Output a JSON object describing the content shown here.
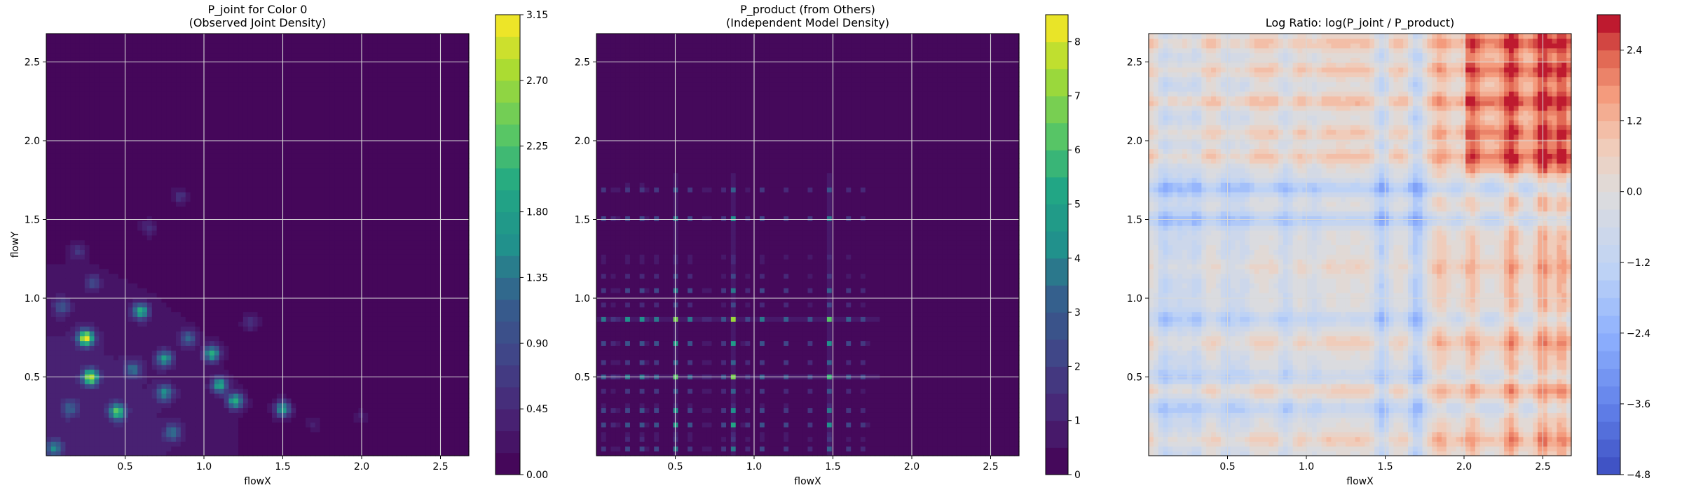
{
  "chart_data": [
    {
      "type": "heatmap",
      "title": "P_joint for Color 0\n(Observed Joint Density)",
      "xlabel": "flowX",
      "ylabel": "flowY",
      "xlim": [
        0,
        2.68
      ],
      "ylim": [
        0,
        2.68
      ],
      "xticks": [
        0.5,
        1.0,
        1.5,
        2.0,
        2.5
      ],
      "yticks": [
        0.5,
        1.0,
        1.5,
        2.0,
        2.5
      ],
      "grid": true,
      "colormap": "viridis",
      "colorbar": {
        "min": 0,
        "max": 3.15,
        "ticks": [
          0.0,
          0.45,
          0.9,
          1.35,
          1.8,
          2.25,
          2.7,
          3.15
        ],
        "tick_labels": [
          "0.00",
          "0.45",
          "0.90",
          "1.35",
          "1.80",
          "2.25",
          "2.70",
          "3.15"
        ],
        "levels": 21
      },
      "density_peaks": [
        {
          "x": 0.25,
          "y": 0.75,
          "value": 2.9
        },
        {
          "x": 0.28,
          "y": 0.5,
          "value": 2.6
        },
        {
          "x": 0.45,
          "y": 0.28,
          "value": 2.1
        },
        {
          "x": 0.6,
          "y": 0.92,
          "value": 1.9
        },
        {
          "x": 1.05,
          "y": 0.65,
          "value": 1.9
        },
        {
          "x": 1.1,
          "y": 0.45,
          "value": 1.8
        },
        {
          "x": 1.2,
          "y": 0.35,
          "value": 1.9
        },
        {
          "x": 1.5,
          "y": 0.3,
          "value": 1.7
        },
        {
          "x": 0.75,
          "y": 0.62,
          "value": 1.6
        },
        {
          "x": 0.75,
          "y": 0.4,
          "value": 1.4
        },
        {
          "x": 0.05,
          "y": 0.05,
          "value": 1.3
        },
        {
          "x": 0.8,
          "y": 0.15,
          "value": 1.1
        },
        {
          "x": 0.9,
          "y": 0.75,
          "value": 1.1
        },
        {
          "x": 0.55,
          "y": 0.55,
          "value": 1.1
        },
        {
          "x": 0.15,
          "y": 0.3,
          "value": 0.9
        },
        {
          "x": 0.1,
          "y": 0.95,
          "value": 0.8
        },
        {
          "x": 0.3,
          "y": 1.1,
          "value": 0.7
        },
        {
          "x": 0.2,
          "y": 1.3,
          "value": 0.5
        },
        {
          "x": 0.85,
          "y": 1.65,
          "value": 0.55
        },
        {
          "x": 0.65,
          "y": 1.45,
          "value": 0.45
        },
        {
          "x": 2.0,
          "y": 0.25,
          "value": 0.3
        },
        {
          "x": 1.7,
          "y": 0.2,
          "value": 0.3
        },
        {
          "x": 1.3,
          "y": 0.85,
          "value": 0.5
        }
      ]
    },
    {
      "type": "heatmap",
      "title": "P_product (from Others)\n(Independent Model Density)",
      "xlabel": "flowX",
      "ylabel": "",
      "xlim": [
        0,
        2.68
      ],
      "ylim": [
        0,
        2.68
      ],
      "xticks": [
        0.5,
        1.0,
        1.5,
        2.0,
        2.5
      ],
      "yticks": [
        0.5,
        1.0,
        1.5,
        2.0,
        2.5
      ],
      "grid": true,
      "colormap": "viridis",
      "colorbar": {
        "min": 0,
        "max": 8.5,
        "ticks": [
          0,
          1,
          2,
          3,
          4,
          5,
          6,
          7,
          8
        ],
        "tick_labels": [
          "0",
          "1",
          "2",
          "3",
          "4",
          "5",
          "6",
          "7",
          "8"
        ],
        "levels": 17
      },
      "marginal_x_peaks": [
        {
          "x": 0.05,
          "w": 0.4
        },
        {
          "x": 0.12,
          "w": 0.5
        },
        {
          "x": 0.2,
          "w": 0.45
        },
        {
          "x": 0.3,
          "w": 1.0
        },
        {
          "x": 0.38,
          "w": 0.4
        },
        {
          "x": 0.5,
          "w": 0.8
        },
        {
          "x": 0.6,
          "w": 0.5
        },
        {
          "x": 0.7,
          "w": 0.45
        },
        {
          "x": 0.8,
          "w": 0.4
        },
        {
          "x": 0.87,
          "w": 0.85
        },
        {
          "x": 0.95,
          "w": 0.35
        },
        {
          "x": 1.05,
          "w": 0.4
        },
        {
          "x": 1.2,
          "w": 0.35
        },
        {
          "x": 1.35,
          "w": 0.3
        },
        {
          "x": 1.48,
          "w": 0.75
        },
        {
          "x": 1.6,
          "w": 0.3
        },
        {
          "x": 1.7,
          "w": 0.4
        }
      ],
      "marginal_y_peaks": [
        {
          "y": 0.05,
          "w": 0.45
        },
        {
          "y": 0.12,
          "w": 0.5
        },
        {
          "y": 0.2,
          "w": 0.55
        },
        {
          "y": 0.3,
          "w": 1.0
        },
        {
          "y": 0.42,
          "w": 0.5
        },
        {
          "y": 0.5,
          "w": 0.75
        },
        {
          "y": 0.6,
          "w": 0.45
        },
        {
          "y": 0.72,
          "w": 0.6
        },
        {
          "y": 0.87,
          "w": 0.85
        },
        {
          "y": 0.95,
          "w": 0.4
        },
        {
          "y": 1.05,
          "w": 0.4
        },
        {
          "y": 1.15,
          "w": 0.3
        },
        {
          "y": 1.25,
          "w": 0.35
        },
        {
          "y": 1.5,
          "w": 0.65
        },
        {
          "y": 1.7,
          "w": 0.6
        }
      ]
    },
    {
      "type": "heatmap",
      "title": "Log Ratio: log(P_joint / P_product)",
      "xlabel": "flowX",
      "ylabel": "",
      "xlim": [
        0,
        2.68
      ],
      "ylim": [
        0,
        2.68
      ],
      "xticks": [
        0.5,
        1.0,
        1.5,
        2.0,
        2.5
      ],
      "yticks": [
        0.5,
        1.0,
        1.5,
        2.0,
        2.5
      ],
      "grid": true,
      "colormap": "coolwarm",
      "colorbar": {
        "min": -4.8,
        "max": 3.0,
        "ticks": [
          -4.8,
          -3.6,
          -2.4,
          -1.2,
          0.0,
          1.2,
          2.4
        ],
        "tick_labels": [
          "−4.8",
          "−3.6",
          "−2.4",
          "−1.2",
          "0.0",
          "1.2",
          "2.4"
        ],
        "levels": 26
      },
      "ratio_bands_x": [
        {
          "x": 0.1,
          "v": -1.2
        },
        {
          "x": 0.2,
          "v": -0.8
        },
        {
          "x": 0.3,
          "v": -1.0
        },
        {
          "x": 0.5,
          "v": -0.9
        },
        {
          "x": 0.6,
          "v": -0.7
        },
        {
          "x": 0.87,
          "v": -0.9
        },
        {
          "x": 1.05,
          "v": -0.5
        },
        {
          "x": 1.48,
          "v": -1.4
        },
        {
          "x": 1.7,
          "v": -1.6
        },
        {
          "x": 1.85,
          "v": 0.8
        },
        {
          "x": 2.05,
          "v": 1.0
        },
        {
          "x": 2.3,
          "v": 1.4
        },
        {
          "x": 2.5,
          "v": 1.5
        },
        {
          "x": 2.62,
          "v": 1.3
        }
      ],
      "ratio_bands_y": [
        {
          "y": 0.1,
          "v": 0.8
        },
        {
          "y": 0.3,
          "v": -0.9
        },
        {
          "y": 0.42,
          "v": 0.8
        },
        {
          "y": 0.5,
          "v": -0.8
        },
        {
          "y": 0.72,
          "v": 0.7
        },
        {
          "y": 0.87,
          "v": -0.9
        },
        {
          "y": 1.2,
          "v": 0.5
        },
        {
          "y": 1.5,
          "v": -1.3
        },
        {
          "y": 1.7,
          "v": -1.4
        },
        {
          "y": 1.9,
          "v": 1.0
        },
        {
          "y": 2.05,
          "v": 0.9
        },
        {
          "y": 2.25,
          "v": 1.2
        },
        {
          "y": 2.45,
          "v": 1.0
        },
        {
          "y": 2.62,
          "v": 1.1
        }
      ]
    }
  ]
}
